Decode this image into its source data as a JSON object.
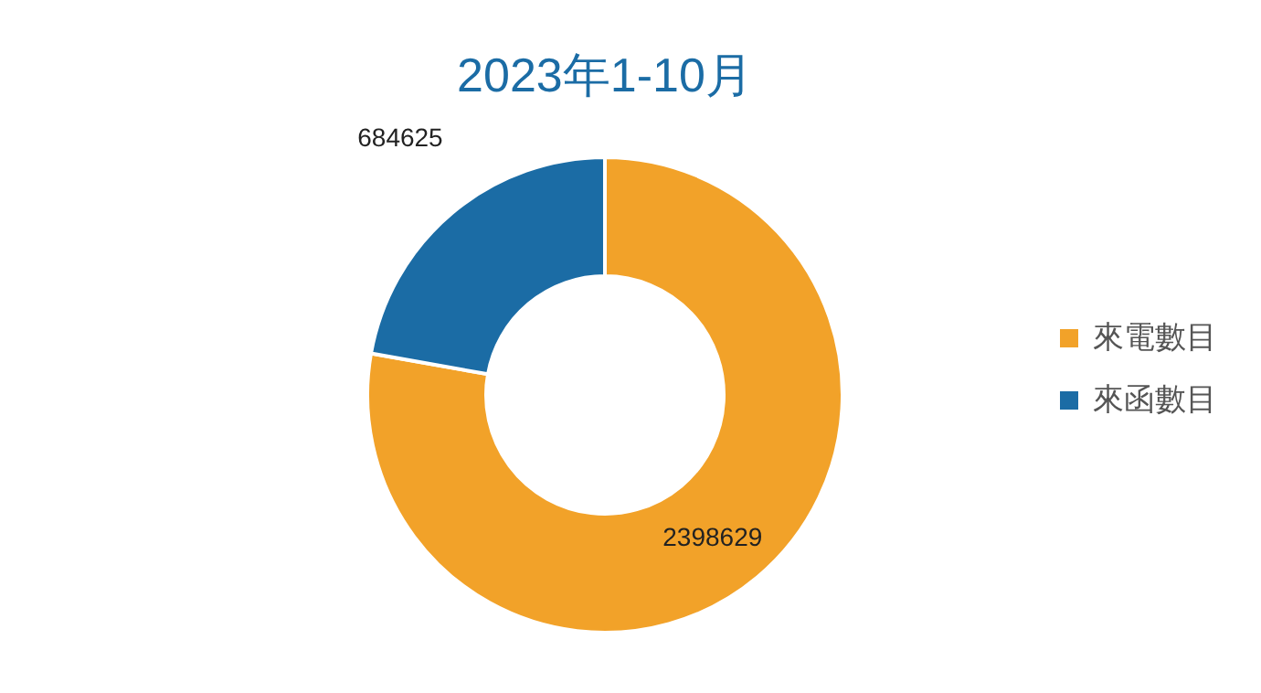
{
  "chart_data": {
    "type": "donut",
    "title": "2023年1-10月",
    "categories": [
      "來電數目",
      "來函數目"
    ],
    "values": [
      2398629,
      684625
    ],
    "colors": [
      "#f2a229",
      "#1b6ca5"
    ],
    "data_labels": true,
    "legend": "right"
  }
}
